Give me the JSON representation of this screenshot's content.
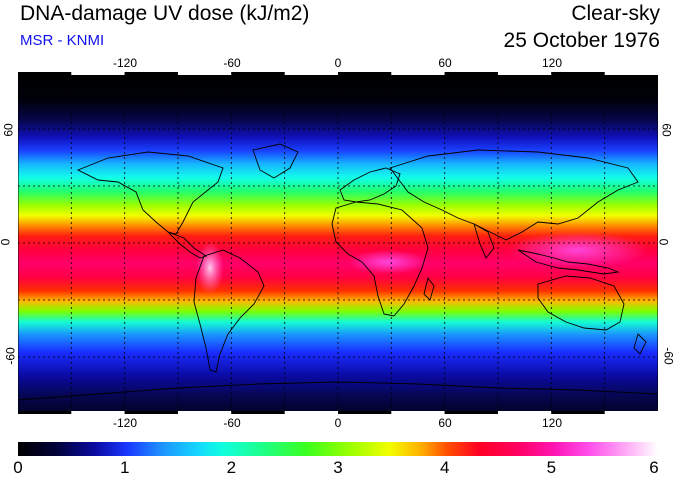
{
  "header": {
    "title": "DNA-damage UV dose (kJ/m2)",
    "subtitle": "MSR - KNMI",
    "sky_condition": "Clear-sky",
    "date": "25 October 1976"
  },
  "map": {
    "projection": "equirectangular",
    "longitude_ticks": [
      "-120",
      "-60",
      "0",
      "60",
      "120"
    ],
    "latitude_ticks": [
      "60",
      "0",
      "-60"
    ],
    "gridlines": "dashed every 30 degrees",
    "coastlines": true
  },
  "colorbar": {
    "min": 0,
    "max": 6,
    "labels": [
      "0",
      "1",
      "2",
      "3",
      "4",
      "5",
      "6"
    ],
    "colors": [
      "#000000",
      "#0a0aa0",
      "#1f8cff",
      "#16d6ff",
      "#3aff20",
      "#f2ff00",
      "#ff0024",
      "#ff16b6",
      "#ffffff"
    ]
  }
}
